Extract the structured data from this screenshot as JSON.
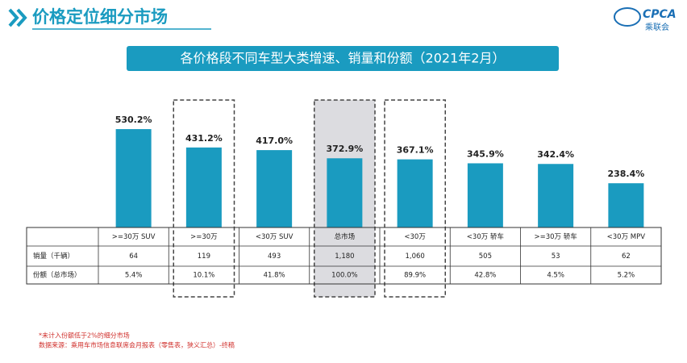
{
  "header": {
    "title": "价格定位细分市场",
    "logo": "CPCA",
    "logo_sub": "乘联会"
  },
  "chart_data": {
    "type": "bar",
    "title": "各价格段不同车型大类增速、销量和份额（2021年2月）",
    "categories": [
      ">=30万 SUV",
      ">=30万",
      "<30万 SUV",
      "总市场",
      "<30万",
      "<30万 轿车",
      ">=30万 轿车",
      "<30万 MPV"
    ],
    "values": [
      530.2,
      431.2,
      417.0,
      372.9,
      367.1,
      345.9,
      342.4,
      238.4
    ],
    "value_labels": [
      "530.2%",
      "431.2%",
      "417.0%",
      "372.9%",
      "367.1%",
      "345.9%",
      "342.4%",
      "238.4%"
    ],
    "color": "#1a9bc0",
    "table": {
      "rows": [
        {
          "label": "销量（千辆）",
          "cells": [
            "64",
            "119",
            "493",
            "1,180",
            "1,060",
            "505",
            "53",
            "62"
          ]
        },
        {
          "label": "份额（总市场）",
          "cells": [
            "5.4%",
            "10.1%",
            "41.8%",
            "100.0%",
            "89.9%",
            "42.8%",
            "4.5%",
            "5.2%"
          ]
        }
      ]
    }
  },
  "notes": [
    "*未计入份额低于2%的细分市场",
    "数据来源：乘用车市场信息联席会月报表（零售表，狭义汇总）-终稿"
  ]
}
